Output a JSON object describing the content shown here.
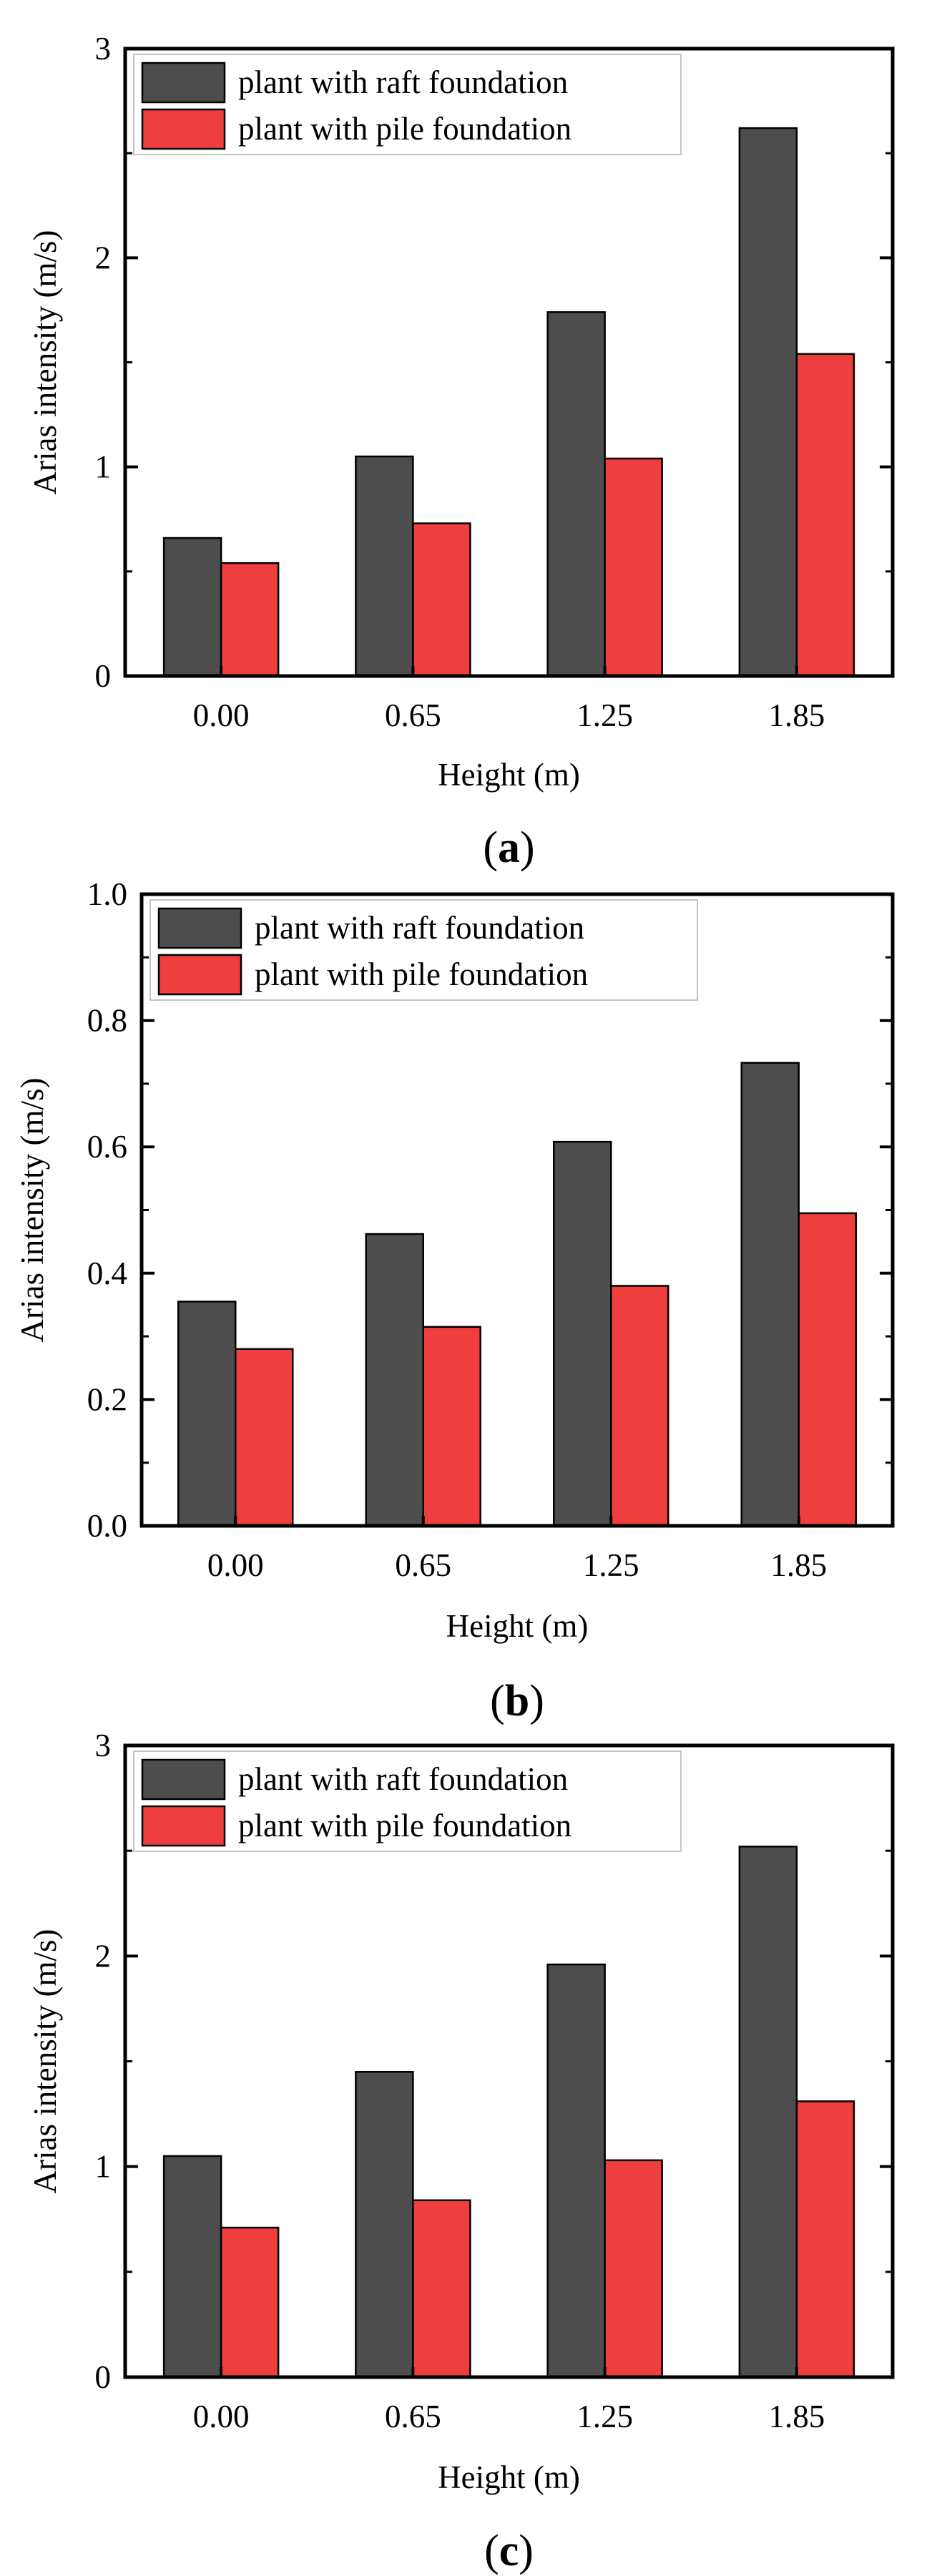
{
  "figure": {
    "panel_labels": [
      "a",
      "b",
      "c"
    ]
  },
  "colors": {
    "raft": "#4d4d4d",
    "pile": "#ee3e3e",
    "axis": "#000000"
  },
  "chart_data": [
    {
      "type": "bar",
      "panel": "a",
      "categories": [
        "0.00",
        "0.65",
        "1.25",
        "1.85"
      ],
      "series": [
        {
          "name": "plant with raft foundation",
          "values": [
            0.66,
            1.05,
            1.74,
            2.62
          ]
        },
        {
          "name": "plant with pile foundation",
          "values": [
            0.54,
            0.73,
            1.04,
            1.54
          ]
        }
      ],
      "xlabel": "Height (m)",
      "ylabel": "Arias intensity (m/s)",
      "ylim": [
        0,
        3
      ],
      "yticks": [
        0,
        1,
        2,
        3
      ],
      "ytick_labels": [
        "0",
        "1",
        "2",
        "3"
      ],
      "legend_position": "top-left",
      "grid": false
    },
    {
      "type": "bar",
      "panel": "b",
      "categories": [
        "0.00",
        "0.65",
        "1.25",
        "1.85"
      ],
      "series": [
        {
          "name": "plant with raft foundation",
          "values": [
            0.355,
            0.462,
            0.608,
            0.733
          ]
        },
        {
          "name": "plant with pile foundation",
          "values": [
            0.28,
            0.315,
            0.38,
            0.495
          ]
        }
      ],
      "xlabel": "Height (m)",
      "ylabel": "Arias intensity (m/s)",
      "ylim": [
        0,
        1.0
      ],
      "yticks": [
        0,
        0.2,
        0.4,
        0.6,
        0.8,
        1.0
      ],
      "ytick_labels": [
        "0.0",
        "0.2",
        "0.4",
        "0.6",
        "0.8",
        "1.0"
      ],
      "legend_position": "top-left",
      "grid": false
    },
    {
      "type": "bar",
      "panel": "c",
      "categories": [
        "0.00",
        "0.65",
        "1.25",
        "1.85"
      ],
      "series": [
        {
          "name": "plant with raft foundation",
          "values": [
            1.05,
            1.45,
            1.96,
            2.52
          ]
        },
        {
          "name": "plant with pile foundation",
          "values": [
            0.71,
            0.84,
            1.03,
            1.31
          ]
        }
      ],
      "xlabel": "Height (m)",
      "ylabel": "Arias intensity (m/s)",
      "ylim": [
        0,
        3
      ],
      "yticks": [
        0,
        1,
        2,
        3
      ],
      "ytick_labels": [
        "0",
        "1",
        "2",
        "3"
      ],
      "legend_position": "top-left",
      "grid": false
    }
  ]
}
